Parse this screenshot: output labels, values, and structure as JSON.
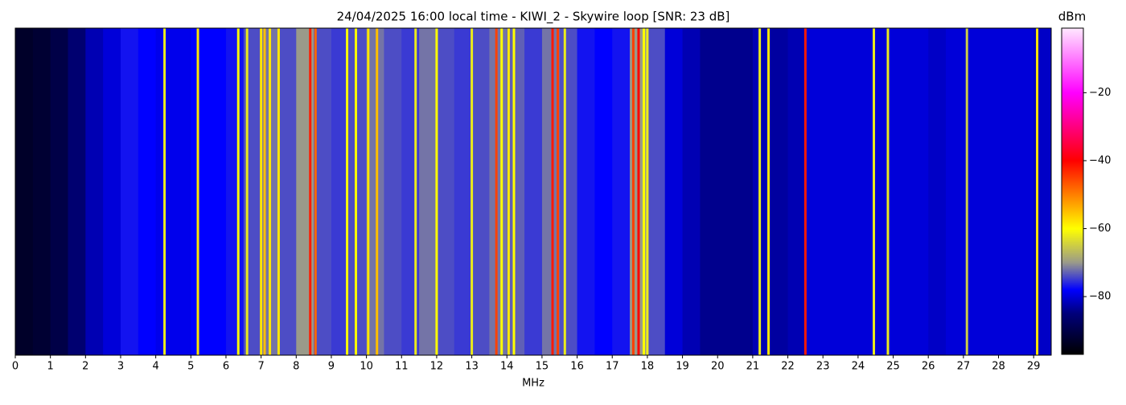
{
  "chart_data": {
    "type": "spectrogram",
    "title": "24/04/2025 16:00 local time - KIWI_2 - Skywire loop [SNR: 23 dB]",
    "xlabel": "MHz",
    "colorbar_label": "dBm",
    "xlim": [
      0,
      29.5
    ],
    "xticks": [
      0,
      1,
      2,
      3,
      4,
      5,
      6,
      7,
      8,
      9,
      10,
      11,
      12,
      13,
      14,
      15,
      16,
      17,
      18,
      19,
      20,
      21,
      22,
      23,
      24,
      25,
      26,
      27,
      28,
      29
    ],
    "clim": [
      -97,
      -1
    ],
    "cticks": [
      {
        "value": -20,
        "label": "−20"
      },
      {
        "value": -40,
        "label": "−40"
      },
      {
        "value": -60,
        "label": "−60"
      },
      {
        "value": -80,
        "label": "−80"
      }
    ],
    "colormap": {
      "values": [
        -97,
        -85,
        -78,
        -70,
        -60,
        -40,
        -20,
        -1
      ],
      "colors": [
        "#000000",
        "#00007a",
        "#0000ff",
        "#9a9a8a",
        "#ffff00",
        "#ff0000",
        "#ff00ff",
        "#ffe8ff"
      ]
    },
    "bins": [
      0,
      0.5,
      1,
      1.5,
      2,
      2.5,
      3,
      3.5,
      4,
      4.5,
      5,
      5.5,
      6,
      6.5,
      7,
      7.5,
      8,
      8.5,
      9,
      9.5,
      10,
      10.5,
      11,
      11.5,
      12,
      12.5,
      13,
      13.5,
      14,
      14.5,
      15,
      15.5,
      16,
      16.5,
      17,
      17.5,
      18,
      18.5,
      19,
      19.5,
      20,
      20.5,
      21,
      21.5,
      22,
      22.5,
      23,
      23.5,
      24,
      24.5,
      25,
      25.5,
      26,
      26.5,
      27,
      27.5,
      28,
      28.5,
      29,
      29.5
    ],
    "levels": [
      -93,
      -92,
      -90,
      -86,
      -82,
      -80,
      -77,
      -78,
      -79,
      -79,
      -78,
      -78,
      -77,
      -74,
      -72,
      -74,
      -70,
      -74,
      -75,
      -74,
      -72,
      -74,
      -75,
      -72,
      -74,
      -75,
      -74,
      -72,
      -73,
      -75,
      -72,
      -74,
      -77,
      -78,
      -77,
      -70,
      -74,
      -80,
      -82,
      -84,
      -84,
      -84,
      -82,
      -83,
      -82,
      -80,
      -80,
      -80,
      -80,
      -80,
      -80,
      -80,
      -81,
      -80,
      -80,
      -80,
      -80,
      -80,
      -81
    ],
    "signals": {
      "freq": [
        4.25,
        5.2,
        6.35,
        6.6,
        7.0,
        7.1,
        7.25,
        7.5,
        8.4,
        8.55,
        9.45,
        9.7,
        10.05,
        10.3,
        11.4,
        12.0,
        13.0,
        13.7,
        13.85,
        14.05,
        14.2,
        15.3,
        15.45,
        15.65,
        17.6,
        17.75,
        17.9,
        18.0,
        21.2,
        21.45,
        22.5,
        24.45,
        24.85,
        27.1,
        29.1
      ],
      "level": [
        -62,
        -58,
        -60,
        -62,
        -58,
        -55,
        -58,
        -58,
        -42,
        -48,
        -60,
        -60,
        -58,
        -55,
        -62,
        -60,
        -62,
        -45,
        -60,
        -58,
        -60,
        -42,
        -45,
        -62,
        -45,
        -40,
        -60,
        -62,
        -62,
        -58,
        -42,
        -62,
        -62,
        -65,
        -58
      ]
    }
  }
}
